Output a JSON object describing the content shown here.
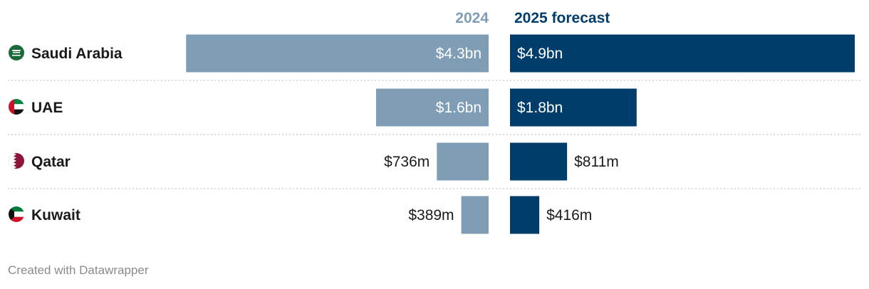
{
  "chart_data": {
    "type": "bar",
    "orientation": "horizontal",
    "layout": "split-columns",
    "title": "",
    "categories": [
      "Saudi Arabia",
      "UAE",
      "Qatar",
      "Kuwait"
    ],
    "flags": [
      "flag-saudi-arabia-icon",
      "flag-uae-icon",
      "flag-qatar-icon",
      "flag-kuwait-icon"
    ],
    "unit": "USD",
    "series": [
      {
        "name": "2024",
        "color": "#7f9db5",
        "values": [
          4300,
          1600,
          736,
          389
        ],
        "labels": [
          "$4.3bn",
          "$1.6bn",
          "$736m",
          "$389m"
        ]
      },
      {
        "name": "2025 forecast",
        "color": "#003d6b",
        "values": [
          4900,
          1800,
          811,
          416
        ],
        "labels": [
          "$4.9bn",
          "$1.8bn",
          "$811m",
          "$416m"
        ]
      }
    ],
    "xlim": [
      0,
      4900
    ],
    "value_unit": "USD millions",
    "grid": false,
    "footer": "Created with Datawrapper"
  },
  "colors": {
    "header_2024": "#7f9db5",
    "header_2025": "#003d6b",
    "label_inside": "#ffffff",
    "label_outside": "#1a1a1a",
    "separator": "#c8c8c8",
    "footer": "#8a8a8a"
  }
}
